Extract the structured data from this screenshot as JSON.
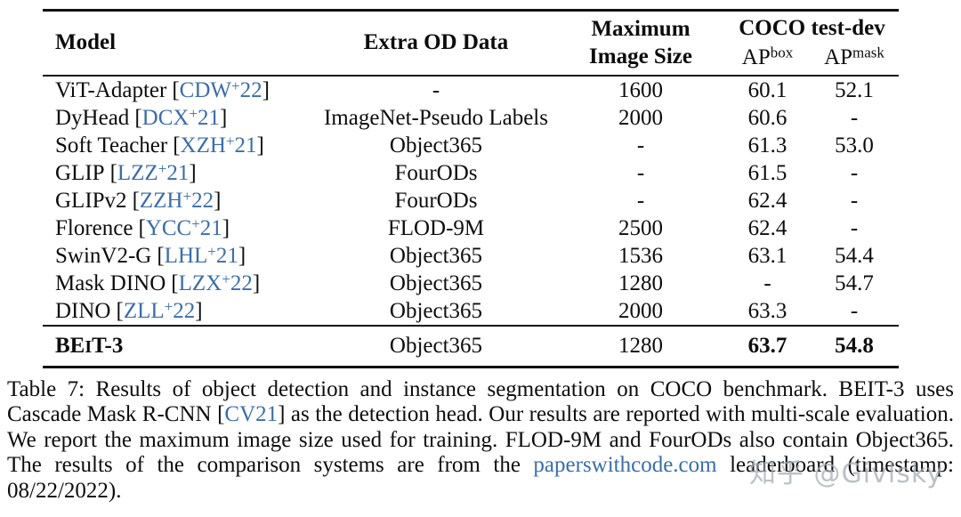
{
  "symbols": {
    "open": "[",
    "close": "]"
  },
  "table": {
    "header": {
      "model": "Model",
      "extra": "Extra OD Data",
      "max_size_line1": "Maximum",
      "max_size_line2": "Image Size",
      "coco": "COCO test-dev",
      "ap": "AP",
      "ap_box_sup": "box",
      "ap_mask_sup": "mask"
    },
    "rows": [
      {
        "name": "ViT-Adapter",
        "cite": "CDW",
        "cite_sup": "+",
        "cite_year": "22",
        "extra": "-",
        "size": "1600",
        "ap_box": "60.1",
        "ap_mask": "52.1"
      },
      {
        "name": "DyHead",
        "cite": "DCX",
        "cite_sup": "+",
        "cite_year": "21",
        "extra": "ImageNet-Pseudo Labels",
        "size": "2000",
        "ap_box": "60.6",
        "ap_mask": "-"
      },
      {
        "name": "Soft Teacher",
        "cite": "XZH",
        "cite_sup": "+",
        "cite_year": "21",
        "extra": "Object365",
        "size": "-",
        "ap_box": "61.3",
        "ap_mask": "53.0"
      },
      {
        "name": "GLIP",
        "cite": "LZZ",
        "cite_sup": "+",
        "cite_year": "21",
        "extra": "FourODs",
        "size": "-",
        "ap_box": "61.5",
        "ap_mask": "-"
      },
      {
        "name": "GLIPv2",
        "cite": "ZZH",
        "cite_sup": "+",
        "cite_year": "22",
        "extra": "FourODs",
        "size": "-",
        "ap_box": "62.4",
        "ap_mask": "-"
      },
      {
        "name": "Florence",
        "cite": "YCC",
        "cite_sup": "+",
        "cite_year": "21",
        "extra": "FLOD-9M",
        "size": "2500",
        "ap_box": "62.4",
        "ap_mask": "-"
      },
      {
        "name": "SwinV2-G",
        "cite": "LHL",
        "cite_sup": "+",
        "cite_year": "21",
        "extra": "Object365",
        "size": "1536",
        "ap_box": "63.1",
        "ap_mask": "54.4"
      },
      {
        "name": "Mask DINO",
        "cite": "LZX",
        "cite_sup": "+",
        "cite_year": "22",
        "extra": "Object365",
        "size": "1280",
        "ap_box": "-",
        "ap_mask": "54.7"
      },
      {
        "name": "DINO",
        "cite": "ZLL",
        "cite_sup": "+",
        "cite_year": "22",
        "extra": "Object365",
        "size": "2000",
        "ap_box": "63.3",
        "ap_mask": "-"
      }
    ],
    "highlight_row": {
      "model_pre": "BE",
      "model_small": "I",
      "model_post": "T-3",
      "extra": "Object365",
      "size": "1280",
      "ap_box": "63.7",
      "ap_mask": "54.8"
    }
  },
  "caption": {
    "seg1": "Table 7: Results of object detection and instance segmentation on COCO benchmark. BEIT-3 uses Cascade Mask R-CNN ",
    "cite": "CV21",
    "seg2": " as the detection head. Our results are reported with multi-scale evaluation. We report the maximum image size used for training. FLOD-9M and FourODs also contain Object365. The results of the comparison systems are from the ",
    "link": "paperswithcode.com",
    "seg3": " leaderboard (timestamp: 08/22/2022)."
  },
  "watermark": "知乎 @Givlsky"
}
